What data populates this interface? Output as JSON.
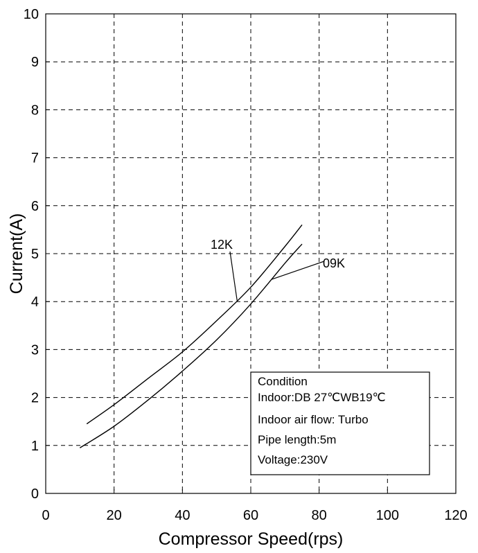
{
  "chart_data": {
    "type": "line",
    "xlabel": "Compressor Speed(rps)",
    "ylabel": "Current(A)",
    "xlim": [
      0,
      120
    ],
    "ylim": [
      0,
      10
    ],
    "xticks": [
      0,
      20,
      40,
      60,
      80,
      100,
      120
    ],
    "yticks": [
      0,
      1,
      2,
      3,
      4,
      5,
      6,
      7,
      8,
      9,
      10
    ],
    "grid": true,
    "series": [
      {
        "name": "12K",
        "x": [
          12,
          20,
          30,
          40,
          50,
          60,
          70,
          75
        ],
        "y": [
          1.45,
          1.85,
          2.4,
          2.95,
          3.6,
          4.3,
          5.15,
          5.6
        ]
      },
      {
        "name": "09K",
        "x": [
          10,
          20,
          30,
          40,
          50,
          60,
          70,
          75
        ],
        "y": [
          0.95,
          1.4,
          1.95,
          2.55,
          3.2,
          3.95,
          4.8,
          5.2
        ]
      }
    ],
    "annotations": [
      {
        "text": "12K",
        "series": 0,
        "points_to_x": 56
      },
      {
        "text": "09K",
        "series": 1,
        "points_to_x": 66
      }
    ],
    "condition_box": {
      "lines": [
        "Condition",
        "Indoor:DB 27℃WB19℃",
        "Indoor air flow: Turbo",
        "Pipe length:5m",
        "Voltage:230V"
      ]
    }
  }
}
